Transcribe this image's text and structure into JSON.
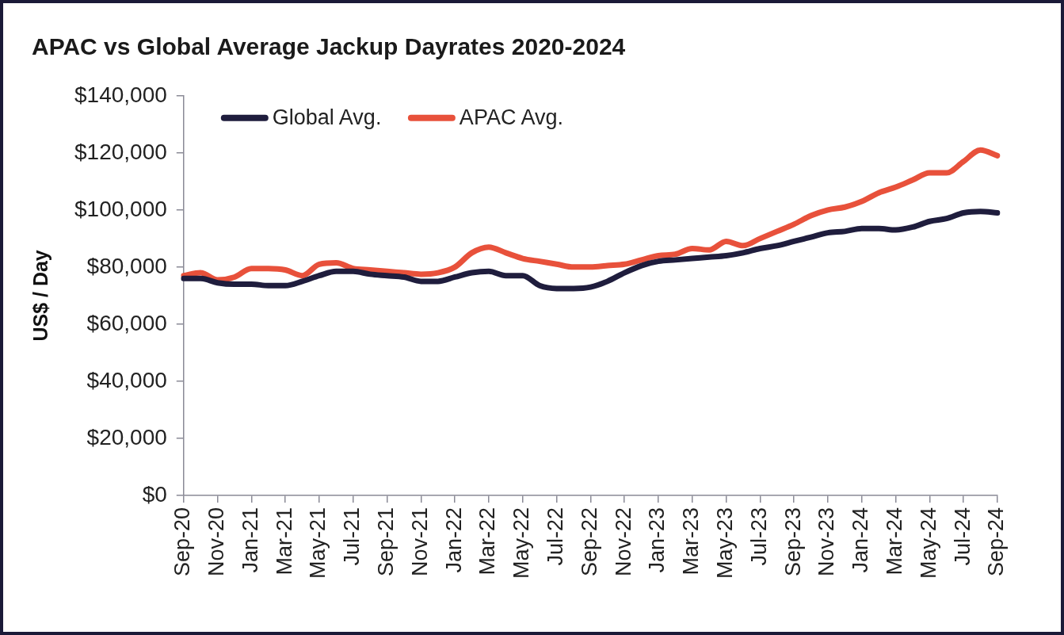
{
  "chart_data": {
    "type": "line",
    "title": "APAC vs Global Average Jackup Dayrates 2020-2024",
    "ylabel": "US$ / Day",
    "categories": [
      "Sep-20",
      null,
      "Nov-20",
      null,
      "Jan-21",
      null,
      "Mar-21",
      null,
      "May-21",
      null,
      "Jul-21",
      null,
      "Sep-21",
      null,
      "Nov-21",
      null,
      "Jan-22",
      null,
      "Mar-22",
      null,
      "May-22",
      null,
      "Jul-22",
      null,
      "Sep-22",
      null,
      "Nov-22",
      null,
      "Jan-23",
      null,
      "Mar-23",
      null,
      "May-23",
      null,
      "Jul-23",
      null,
      "Sep-23",
      null,
      "Nov-23",
      null,
      "Jan-24",
      null,
      "Mar-24",
      null,
      "May-24",
      null,
      "Jul-24",
      null,
      "Sep-24"
    ],
    "series": [
      {
        "name": "Global Avg.",
        "color": "#1f1d3d",
        "values": [
          76000,
          76000,
          74500,
          74000,
          74000,
          73500,
          73500,
          75000,
          77000,
          78500,
          78500,
          77500,
          77000,
          76500,
          75000,
          75000,
          76500,
          78000,
          78500,
          77000,
          77000,
          73500,
          72500,
          72500,
          73000,
          75000,
          78000,
          80500,
          82000,
          82500,
          83000,
          83500,
          84000,
          85000,
          86500,
          87500,
          89000,
          90500,
          92000,
          92500,
          93500,
          93500,
          93000,
          94000,
          96000,
          97000,
          99000,
          99500,
          99000
        ]
      },
      {
        "name": "APAC Avg.",
        "color": "#e8513b",
        "values": [
          77000,
          78000,
          75500,
          76500,
          79500,
          79500,
          79000,
          77000,
          81000,
          81500,
          79500,
          79000,
          78500,
          78000,
          77500,
          78000,
          80000,
          85000,
          87000,
          85000,
          83000,
          82000,
          81000,
          80000,
          80000,
          80500,
          81000,
          82500,
          84000,
          84500,
          86500,
          86000,
          89000,
          87500,
          90000,
          92500,
          95000,
          98000,
          100000,
          101000,
          103000,
          106000,
          108000,
          110500,
          113000,
          113000,
          117000,
          121000,
          119000
        ]
      }
    ],
    "ylim": [
      0,
      140000
    ],
    "yticks": [
      {
        "value": 0,
        "label": "$0"
      },
      {
        "value": 20000,
        "label": "$20,000"
      },
      {
        "value": 40000,
        "label": "$40,000"
      },
      {
        "value": 60000,
        "label": "$60,000"
      },
      {
        "value": 80000,
        "label": "$80,000"
      },
      {
        "value": 100000,
        "label": "$100,000"
      },
      {
        "value": 120000,
        "label": "$120,000"
      },
      {
        "value": 140000,
        "label": "$140,000"
      }
    ],
    "grid": false,
    "legend": "top left",
    "marker": "none",
    "line_style": "solid"
  }
}
